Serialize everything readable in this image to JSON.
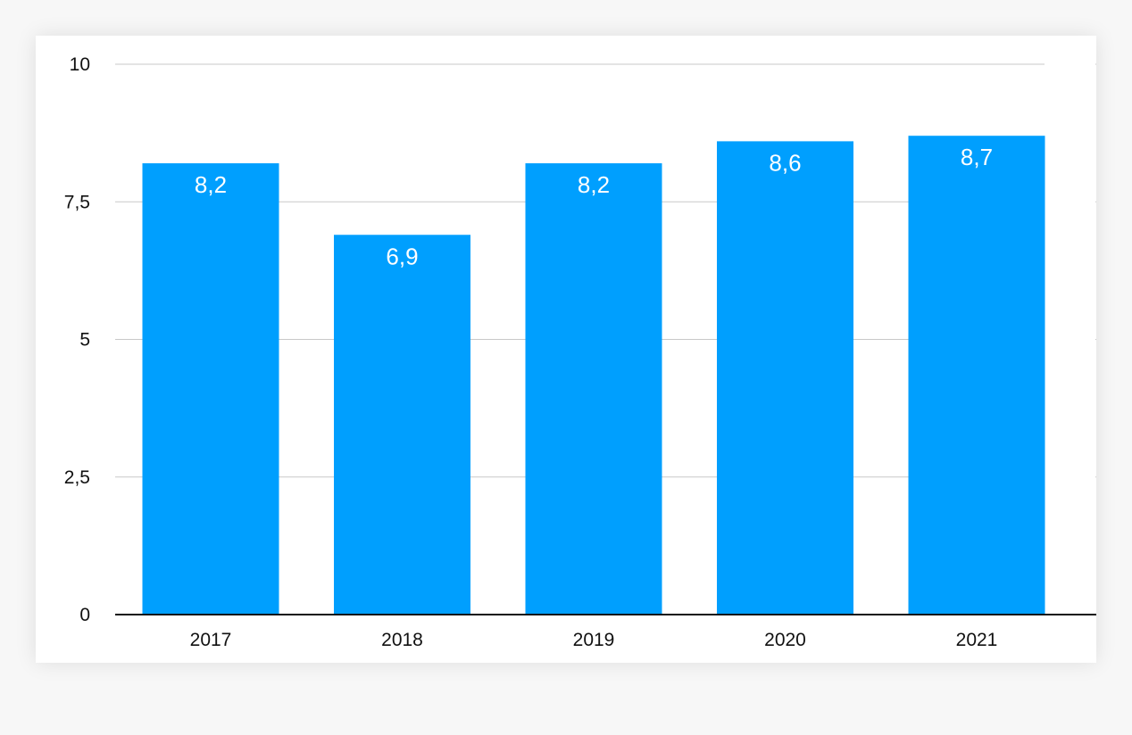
{
  "chart_data": {
    "type": "bar",
    "categories": [
      "2017",
      "2018",
      "2019",
      "2020",
      "2021"
    ],
    "values": [
      8.2,
      6.9,
      8.2,
      8.6,
      8.7
    ],
    "value_labels": [
      "8,2",
      "6,9",
      "8,2",
      "8,6",
      "8,7"
    ],
    "y_ticks": [
      0,
      2.5,
      5,
      7.5,
      10
    ],
    "y_tick_labels": [
      "0",
      "2,5",
      "5",
      "7,5",
      "10"
    ],
    "ylim": [
      0,
      10
    ],
    "title": "",
    "xlabel": "",
    "ylabel": "",
    "grid": true,
    "legend": "none",
    "colors": {
      "bar": "#009ffe",
      "grid": "#c8c8c8",
      "axis": "#111111",
      "value_label": "#ffffff"
    }
  }
}
